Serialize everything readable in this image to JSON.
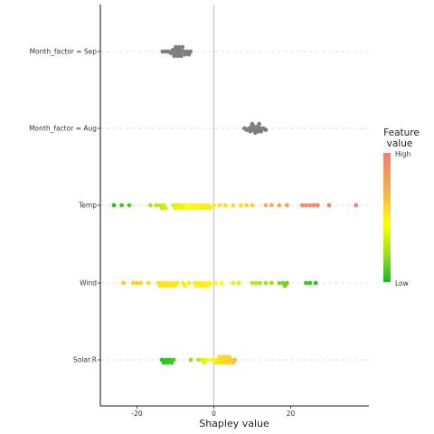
{
  "chart_data": {
    "type": "scatter",
    "title": "",
    "xlabel": "Shapley value",
    "ylabel": "",
    "xlim": [
      -30,
      40
    ],
    "x_ticks": [
      -20,
      0,
      20
    ],
    "x_tick_labels": [
      "-20",
      "0",
      "20"
    ],
    "grid": "horizontal dashed lines at each feature",
    "legend_placement": "right",
    "legend": {
      "title_line1": "Feature",
      "title_line2": "value",
      "high_label": "High",
      "low_label": "Low",
      "gradient_colors": [
        "#f08070",
        "#f5a255",
        "#ffff00",
        "#98e020",
        "#11bb22"
      ]
    },
    "features": [
      {
        "name": "Month_factor = Sep",
        "color": "#7f7f7f",
        "points": [
          [
            -13.3,
            0
          ],
          [
            -12.5,
            0
          ],
          [
            -11.8,
            0
          ],
          [
            -11.2,
            0
          ],
          [
            -10.7,
            0
          ],
          [
            -10.3,
            0
          ],
          [
            -10.0,
            0
          ],
          [
            -9.7,
            0
          ],
          [
            -9.4,
            0
          ],
          [
            -9.1,
            0
          ],
          [
            -8.8,
            0
          ],
          [
            -8.5,
            0
          ],
          [
            -8.2,
            0
          ],
          [
            -7.9,
            0
          ],
          [
            -7.5,
            0
          ],
          [
            -7.0,
            0
          ],
          [
            -6.5,
            0
          ],
          [
            -6.1,
            0
          ],
          [
            -9.9,
            0
          ],
          [
            -8.6,
            0
          ],
          [
            -9.3,
            0
          ],
          [
            -10.5,
            0
          ]
        ]
      },
      {
        "name": "Month_factor = Aug",
        "color": "#7f7f7f",
        "points": [
          [
            8.0,
            0
          ],
          [
            8.6,
            0
          ],
          [
            9.2,
            0
          ],
          [
            9.8,
            0
          ],
          [
            10.3,
            0
          ],
          [
            10.8,
            0
          ],
          [
            11.3,
            0
          ],
          [
            11.8,
            0
          ],
          [
            12.3,
            0
          ],
          [
            12.9,
            0
          ],
          [
            13.5,
            0
          ],
          [
            10.0,
            0
          ],
          [
            11.0,
            0
          ],
          [
            12.0,
            0
          ],
          [
            9.5,
            0
          ],
          [
            10.6,
            0
          ],
          [
            11.6,
            0
          ]
        ]
      },
      {
        "name": "Temp",
        "points": [
          [
            -26,
            0.95
          ],
          [
            -24,
            0.93
          ],
          [
            -22,
            0.9
          ],
          [
            -16.5,
            0.75
          ],
          [
            -15,
            0.72
          ],
          [
            -14,
            0.7
          ],
          [
            -13.5,
            0.68
          ],
          [
            -13,
            0.67
          ],
          [
            -12.5,
            0.66
          ],
          [
            -10.5,
            0.64
          ],
          [
            -10,
            0.63
          ],
          [
            -9.5,
            0.62
          ],
          [
            -9,
            0.6
          ],
          [
            -8.5,
            0.6
          ],
          [
            -8,
            0.58
          ],
          [
            -7.5,
            0.57
          ],
          [
            -7,
            0.56
          ],
          [
            -6.5,
            0.55
          ],
          [
            -6,
            0.54
          ],
          [
            -5.5,
            0.53
          ],
          [
            -5,
            0.52
          ],
          [
            -4.5,
            0.52
          ],
          [
            -4,
            0.51
          ],
          [
            -3.5,
            0.5
          ],
          [
            -3,
            0.5
          ],
          [
            -2.5,
            0.5
          ],
          [
            -2,
            0.49
          ],
          [
            -1.5,
            0.49
          ],
          [
            -1,
            0.48
          ],
          [
            0,
            0.48
          ],
          [
            1.5,
            0.47
          ],
          [
            3,
            0.46
          ],
          [
            5,
            0.45
          ],
          [
            7,
            0.44
          ],
          [
            8.5,
            0.42
          ],
          [
            10,
            0.4
          ],
          [
            13.5,
            0.3
          ],
          [
            15,
            0.28
          ],
          [
            17,
            0.26
          ],
          [
            19,
            0.24
          ],
          [
            23,
            0.12
          ],
          [
            24,
            0.1
          ],
          [
            25,
            0.09
          ],
          [
            26,
            0.08
          ],
          [
            27,
            0.07
          ],
          [
            30,
            0.05
          ],
          [
            37,
            0.02
          ]
        ]
      },
      {
        "name": "Wind",
        "points": [
          [
            -23.5,
            0.38
          ],
          [
            -21,
            0.4
          ],
          [
            -20,
            0.41
          ],
          [
            -19,
            0.42
          ],
          [
            -17,
            0.43
          ],
          [
            -14.5,
            0.45
          ],
          [
            -14,
            0.45
          ],
          [
            -13.5,
            0.46
          ],
          [
            -13,
            0.46
          ],
          [
            -12.5,
            0.47
          ],
          [
            -12,
            0.47
          ],
          [
            -11.5,
            0.47
          ],
          [
            -11,
            0.48
          ],
          [
            -10.5,
            0.48
          ],
          [
            -10,
            0.48
          ],
          [
            -9.5,
            0.48
          ],
          [
            -8,
            0.49
          ],
          [
            -7.5,
            0.49
          ],
          [
            -6.5,
            0.5
          ],
          [
            -5,
            0.5
          ],
          [
            -4.5,
            0.5
          ],
          [
            -4,
            0.5
          ],
          [
            -3.5,
            0.51
          ],
          [
            -3,
            0.51
          ],
          [
            -2.5,
            0.51
          ],
          [
            -2,
            0.52
          ],
          [
            -1.5,
            0.52
          ],
          [
            -1,
            0.52
          ],
          [
            0.5,
            0.53
          ],
          [
            2,
            0.55
          ],
          [
            5,
            0.62
          ],
          [
            6.5,
            0.65
          ],
          [
            10,
            0.72
          ],
          [
            11,
            0.73
          ],
          [
            12,
            0.74
          ],
          [
            13.5,
            0.76
          ],
          [
            15,
            0.78
          ],
          [
            17,
            0.82
          ],
          [
            18,
            0.84
          ],
          [
            18.5,
            0.85
          ],
          [
            19,
            0.86
          ],
          [
            24,
            0.93
          ],
          [
            25,
            0.94
          ],
          [
            26.5,
            0.96
          ]
        ]
      },
      {
        "name": "Solar.R",
        "points": [
          [
            -13.5,
            0.96
          ],
          [
            -13,
            0.95
          ],
          [
            -12.5,
            0.95
          ],
          [
            -12,
            0.94
          ],
          [
            -11.5,
            0.94
          ],
          [
            -11,
            0.93
          ],
          [
            -10.5,
            0.92
          ],
          [
            -6,
            0.8
          ],
          [
            -4,
            0.72
          ],
          [
            -2,
            0.6
          ],
          [
            -1,
            0.55
          ],
          [
            0,
            0.5
          ],
          [
            0.5,
            0.48
          ],
          [
            1,
            0.46
          ],
          [
            1.5,
            0.45
          ],
          [
            2,
            0.44
          ],
          [
            2.5,
            0.43
          ],
          [
            3,
            0.42
          ],
          [
            3.5,
            0.41
          ],
          [
            4,
            0.4
          ],
          [
            4.5,
            0.4
          ],
          [
            5,
            0.38
          ],
          [
            5.5,
            0.36
          ],
          [
            1.2,
            0.45
          ],
          [
            2.8,
            0.42
          ],
          [
            3.8,
            0.4
          ],
          [
            2.2,
            0.44
          ],
          [
            3.2,
            0.41
          ],
          [
            -3,
            0.66
          ],
          [
            -2.5,
            0.62
          ]
        ]
      }
    ]
  }
}
